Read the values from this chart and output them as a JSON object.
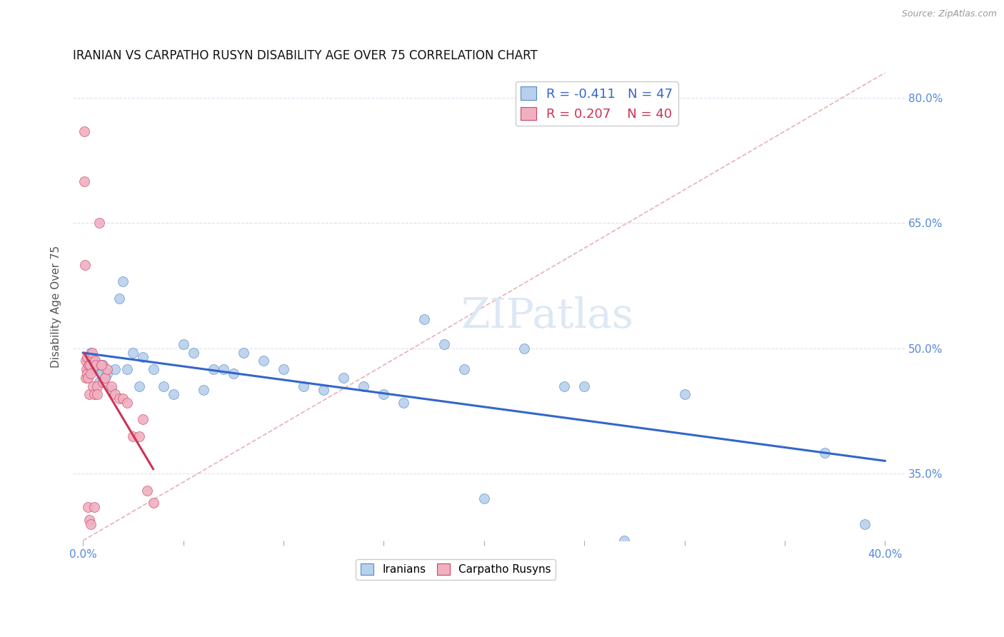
{
  "title": "IRANIAN VS CARPATHO RUSYN DISABILITY AGE OVER 75 CORRELATION CHART",
  "source": "Source: ZipAtlas.com",
  "xlim": [
    -0.5,
    41.0
  ],
  "ylim": [
    27.0,
    83.0
  ],
  "ylabel_ticks": [
    35.0,
    50.0,
    65.0,
    80.0
  ],
  "x_tick_positions": [
    0.0,
    5.0,
    10.0,
    15.0,
    20.0,
    25.0,
    30.0,
    35.0,
    40.0
  ],
  "x_tick_labels_show": [
    "0.0%",
    "",
    "",
    "",
    "",
    "",
    "",
    "",
    "40.0%"
  ],
  "iranians": {
    "R": -0.411,
    "N": 47,
    "color": "#b8d0eb",
    "edge_color": "#5588cc",
    "trend_color": "#3366cc",
    "x": [
      0.3,
      0.4,
      0.5,
      0.6,
      0.7,
      0.8,
      0.9,
      1.0,
      1.1,
      1.2,
      1.4,
      1.6,
      1.8,
      2.0,
      2.2,
      2.5,
      2.8,
      3.0,
      3.5,
      4.0,
      4.5,
      5.0,
      5.5,
      6.0,
      6.5,
      7.0,
      7.5,
      8.0,
      9.0,
      10.0,
      11.0,
      12.0,
      13.0,
      14.0,
      15.0,
      16.0,
      17.0,
      18.0,
      19.0,
      20.0,
      22.0,
      24.0,
      25.0,
      27.0,
      30.0,
      37.0,
      39.0
    ],
    "y": [
      48.0,
      49.5,
      47.5,
      48.5,
      47.5,
      46.0,
      47.0,
      48.0,
      46.5,
      47.0,
      45.0,
      47.5,
      56.0,
      58.0,
      47.5,
      49.5,
      45.5,
      49.0,
      47.5,
      45.5,
      44.5,
      50.5,
      49.5,
      45.0,
      47.5,
      47.5,
      47.0,
      49.5,
      48.5,
      47.5,
      45.5,
      45.0,
      46.5,
      45.5,
      44.5,
      43.5,
      53.5,
      50.5,
      47.5,
      32.0,
      50.0,
      45.5,
      45.5,
      27.0,
      44.5,
      37.5,
      29.0
    ]
  },
  "carpatho_rusyns": {
    "R": 0.207,
    "N": 40,
    "color": "#f0b0c0",
    "edge_color": "#cc4466",
    "trend_color": "#cc3355",
    "x": [
      0.05,
      0.08,
      0.1,
      0.12,
      0.15,
      0.18,
      0.2,
      0.22,
      0.25,
      0.28,
      0.3,
      0.35,
      0.4,
      0.45,
      0.5,
      0.55,
      0.6,
      0.65,
      0.7,
      0.8,
      0.9,
      1.0,
      1.1,
      1.2,
      1.4,
      1.6,
      1.8,
      2.0,
      2.2,
      2.5,
      2.8,
      3.0,
      3.2,
      3.5,
      0.25,
      0.3,
      0.4,
      0.55,
      0.7,
      0.9
    ],
    "y": [
      76.0,
      70.0,
      60.0,
      48.5,
      46.5,
      47.5,
      49.0,
      47.0,
      46.5,
      48.0,
      44.5,
      48.0,
      47.0,
      49.5,
      45.5,
      44.5,
      48.5,
      48.0,
      45.5,
      65.0,
      48.0,
      46.0,
      46.5,
      47.5,
      45.5,
      44.5,
      44.0,
      44.0,
      43.5,
      39.5,
      39.5,
      41.5,
      33.0,
      31.5,
      31.0,
      29.5,
      29.0,
      31.0,
      44.5,
      48.0
    ]
  },
  "diag_line_color": "#e8b0b8",
  "diag_line_style": "--",
  "ylabel": "Disability Age Over 75",
  "title_fontsize": 12,
  "label_color_blue": "#3366cc",
  "label_color_pink": "#cc3355",
  "axis_tick_color": "#5588dd",
  "background_color": "#ffffff",
  "grid_color": "#dde0ee",
  "watermark": "ZIPatlas",
  "watermark_color": "#dde8f5"
}
